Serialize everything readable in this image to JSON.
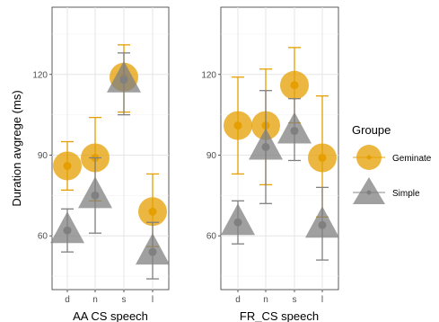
{
  "chart_data": {
    "type": "scatter",
    "ylabel": "Duration avgrege (ms)",
    "ylim": [
      40,
      145
    ],
    "yticks": [
      60,
      90,
      120
    ],
    "grid": true,
    "legend": {
      "title": "Groupe",
      "placement": "right",
      "entries": [
        {
          "name": "Geminate",
          "color": "#E69F00",
          "marker": "circle"
        },
        {
          "name": "Simple",
          "color": "#808080",
          "marker": "triangle"
        }
      ]
    },
    "panels": [
      {
        "xlabel": "AA CS speech",
        "categories": [
          "d",
          "n",
          "s",
          "l"
        ],
        "series": [
          {
            "name": "Geminate",
            "values": [
              86,
              89,
              119,
              69
            ],
            "lower": [
              77,
              73,
              106,
              56
            ],
            "upper": [
              95,
              104,
              131,
              83
            ]
          },
          {
            "name": "Simple",
            "values": [
              62,
              75,
              118,
              54
            ],
            "lower": [
              54,
              61,
              105,
              44
            ],
            "upper": [
              70,
              89,
              128,
              65
            ]
          }
        ]
      },
      {
        "xlabel": "FR_CS speech",
        "categories": [
          "d",
          "n",
          "s",
          "l"
        ],
        "series": [
          {
            "name": "Geminate",
            "values": [
              101,
              101,
              116,
              89
            ],
            "lower": [
              83,
              79,
              102,
              67
            ],
            "upper": [
              119,
              122,
              130,
              112
            ]
          },
          {
            "name": "Simple",
            "values": [
              65,
              93,
              99,
              64
            ],
            "lower": [
              57,
              72,
              88,
              51
            ],
            "upper": [
              73,
              114,
              111,
              78
            ]
          }
        ]
      }
    ]
  }
}
